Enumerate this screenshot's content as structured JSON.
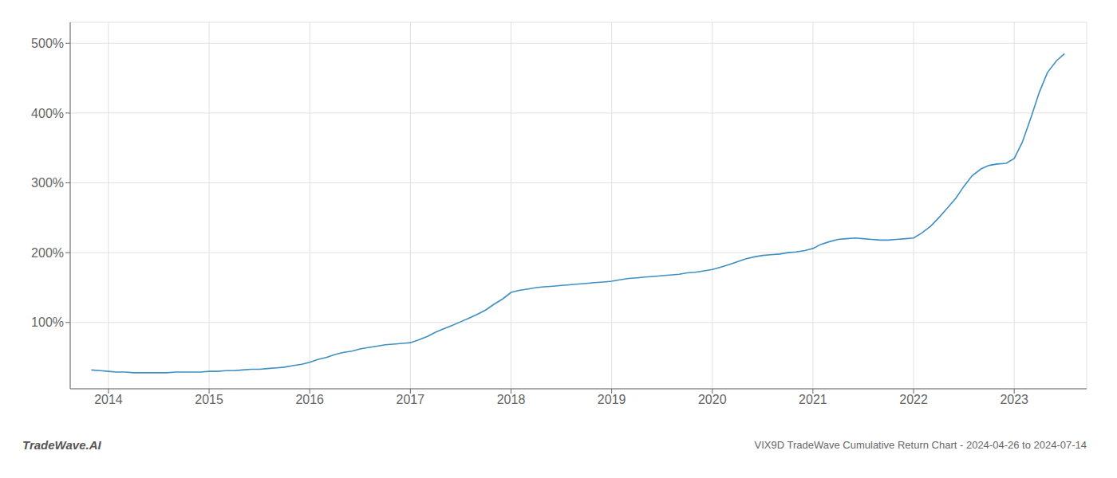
{
  "chart_data": {
    "type": "line",
    "title": "VIX9D TradeWave Cumulative Return Chart - 2024-04-26 to 2024-07-14",
    "annotations": [
      "TradeWave.AI"
    ],
    "color": "#3d8fc4",
    "grid": true,
    "xlim": [
      2013.62,
      2023.72
    ],
    "xticks": [
      2014,
      2015,
      2016,
      2017,
      2018,
      2019,
      2020,
      2021,
      2022,
      2023
    ],
    "ylim": [
      5,
      530
    ],
    "yticks": [
      {
        "value": 100,
        "label": "100%"
      },
      {
        "value": 200,
        "label": "200%"
      },
      {
        "value": 300,
        "label": "300%"
      },
      {
        "value": 400,
        "label": "400%"
      },
      {
        "value": 500,
        "label": "500%"
      }
    ],
    "x": [
      2013.83,
      2013.92,
      2014.0,
      2014.08,
      2014.17,
      2014.25,
      2014.33,
      2014.42,
      2014.5,
      2014.58,
      2014.67,
      2014.75,
      2014.83,
      2014.92,
      2015.0,
      2015.08,
      2015.17,
      2015.25,
      2015.33,
      2015.42,
      2015.5,
      2015.58,
      2015.67,
      2015.75,
      2015.83,
      2015.92,
      2016.0,
      2016.08,
      2016.17,
      2016.25,
      2016.33,
      2016.42,
      2016.5,
      2016.58,
      2016.67,
      2016.75,
      2016.83,
      2016.92,
      2017.0,
      2017.08,
      2017.17,
      2017.25,
      2017.33,
      2017.42,
      2017.5,
      2017.58,
      2017.67,
      2017.75,
      2017.83,
      2017.92,
      2018.0,
      2018.08,
      2018.17,
      2018.25,
      2018.33,
      2018.42,
      2018.5,
      2018.58,
      2018.67,
      2018.75,
      2018.83,
      2018.92,
      2019.0,
      2019.08,
      2019.17,
      2019.25,
      2019.33,
      2019.42,
      2019.5,
      2019.58,
      2019.67,
      2019.75,
      2019.83,
      2019.92,
      2020.0,
      2020.08,
      2020.17,
      2020.25,
      2020.33,
      2020.42,
      2020.5,
      2020.58,
      2020.67,
      2020.75,
      2020.83,
      2020.92,
      2021.0,
      2021.08,
      2021.17,
      2021.25,
      2021.33,
      2021.42,
      2021.5,
      2021.58,
      2021.67,
      2021.75,
      2021.83,
      2021.92,
      2022.0,
      2022.08,
      2022.17,
      2022.25,
      2022.33,
      2022.42,
      2022.5,
      2022.58,
      2022.67,
      2022.75,
      2022.83,
      2022.92,
      2023.0,
      2023.08,
      2023.17,
      2023.25,
      2023.33,
      2023.42,
      2023.5
    ],
    "values": [
      32,
      31,
      30,
      29,
      29,
      28,
      28,
      28,
      28,
      28,
      29,
      29,
      29,
      29,
      30,
      30,
      31,
      31,
      32,
      33,
      33,
      34,
      35,
      36,
      38,
      40,
      43,
      47,
      50,
      54,
      57,
      59,
      62,
      64,
      66,
      68,
      69,
      70,
      71,
      75,
      80,
      86,
      91,
      96,
      101,
      106,
      112,
      118,
      126,
      134,
      143,
      146,
      148,
      150,
      151,
      152,
      153,
      154,
      155,
      156,
      157,
      158,
      159,
      161,
      163,
      164,
      165,
      166,
      167,
      168,
      169,
      171,
      172,
      174,
      176,
      179,
      183,
      187,
      191,
      194,
      196,
      197,
      198,
      200,
      201,
      203,
      206,
      212,
      216,
      219,
      220,
      221,
      220,
      219,
      218,
      218,
      219,
      220,
      221,
      228,
      238,
      250,
      263,
      278,
      295,
      310,
      320,
      325,
      327,
      328,
      335,
      358,
      395,
      430,
      458,
      475,
      485
    ]
  }
}
